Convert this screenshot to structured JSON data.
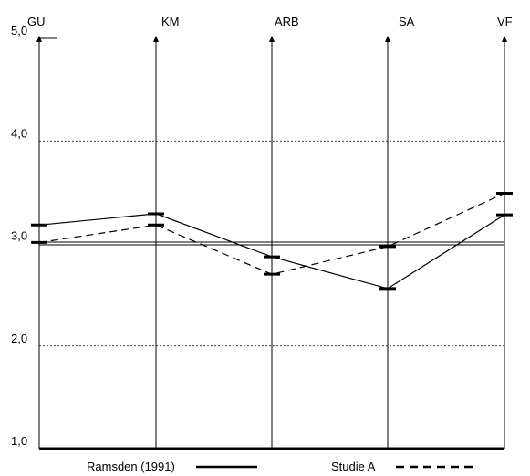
{
  "chart_data": {
    "type": "line",
    "categories": [
      "GU",
      "KM",
      "ARB",
      "SA",
      "VF"
    ],
    "y_ticks": [
      "5,0",
      "4,0",
      "3,0",
      "2,0",
      "1,0"
    ],
    "y_tick_values": [
      5,
      4,
      3,
      2,
      1
    ],
    "ylim": [
      1,
      5
    ],
    "reference_line": 3.0,
    "grid": true,
    "legend_position": "bottom",
    "series": [
      {
        "name": "Ramsden (1991)",
        "values": [
          3.18,
          3.29,
          2.87,
          2.56,
          3.28
        ],
        "line_style": "solid"
      },
      {
        "name": "Studie A",
        "values": [
          3.01,
          3.18,
          2.7,
          2.97,
          3.49
        ],
        "line_style": "dashed"
      }
    ],
    "colors": {
      "lines": "#000000",
      "grid": "#000000",
      "background": "#ffffff"
    }
  }
}
